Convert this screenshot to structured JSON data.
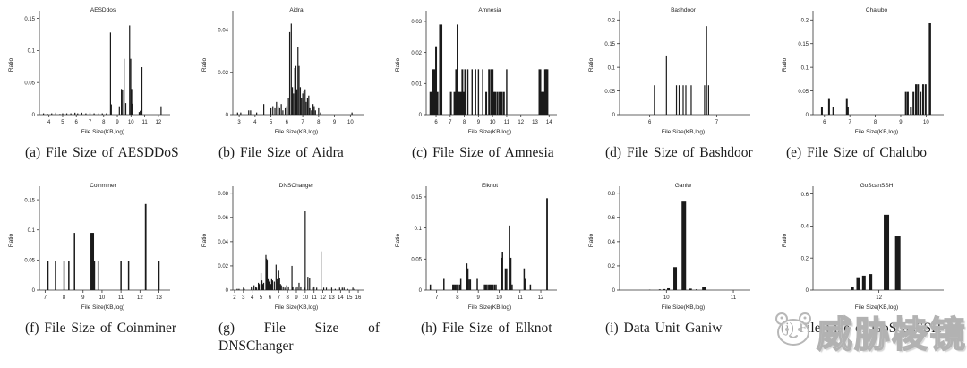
{
  "page": {
    "background": "#ffffff",
    "bar_color": "#1a1a1a",
    "axis_color": "#333333"
  },
  "watermark": {
    "logo_icon": "mascot-face-icon",
    "text": "威胁棱镜"
  },
  "chart_data": [
    {
      "type": "bar",
      "title": "AESDdos",
      "caption": "(a) File Size of AESDDoS",
      "xlabel": "File Size(KB,log)",
      "ylabel": "Ratio",
      "xmin": 3.3,
      "xmax": 12.6,
      "ymax": 0.155,
      "xticks": [
        4,
        5,
        6,
        7,
        8,
        9,
        10,
        11,
        12
      ],
      "yticks": [
        0,
        0.05,
        0.1,
        0.15
      ],
      "bars": [
        [
          3.6,
          0.002
        ],
        [
          3.9,
          0.001
        ],
        [
          4.2,
          0.002
        ],
        [
          4.5,
          0.003
        ],
        [
          4.8,
          0.001
        ],
        [
          5.0,
          0.002
        ],
        [
          5.3,
          0.002
        ],
        [
          5.6,
          0.002
        ],
        [
          5.9,
          0.003
        ],
        [
          6.1,
          0.002
        ],
        [
          6.4,
          0.003
        ],
        [
          6.7,
          0.002
        ],
        [
          7.0,
          0.003
        ],
        [
          7.3,
          0.002
        ],
        [
          7.6,
          0.002
        ],
        [
          7.9,
          0.002
        ],
        [
          8.2,
          0.002
        ],
        [
          8.5,
          0.128
        ],
        [
          8.56,
          0.016
        ],
        [
          9.15,
          0.013
        ],
        [
          9.3,
          0.04
        ],
        [
          9.38,
          0.038
        ],
        [
          9.5,
          0.087
        ],
        [
          9.62,
          0.018
        ],
        [
          9.9,
          0.139
        ],
        [
          9.98,
          0.087
        ],
        [
          10.05,
          0.04
        ],
        [
          10.12,
          0.017
        ],
        [
          10.6,
          0.004
        ],
        [
          10.68,
          0.006
        ],
        [
          10.8,
          0.074
        ],
        [
          12.2,
          0.013
        ]
      ]
    },
    {
      "type": "bar",
      "title": "Aidra",
      "caption": "(b) File Size of Aidra",
      "xlabel": "File Size(KB,log)",
      "ylabel": "Ratio",
      "xmin": 2.6,
      "xmax": 10.6,
      "ymax": 0.047,
      "xticks": [
        3,
        4,
        5,
        6,
        7,
        8,
        9,
        10
      ],
      "yticks": [
        0,
        0.02,
        0.04
      ],
      "bars": [
        [
          2.9,
          0.001
        ],
        [
          3.1,
          0.001
        ],
        [
          3.6,
          0.002
        ],
        [
          3.72,
          0.002
        ],
        [
          4.1,
          0.001
        ],
        [
          4.55,
          0.005
        ],
        [
          5.0,
          0.003
        ],
        [
          5.12,
          0.004
        ],
        [
          5.25,
          0.003
        ],
        [
          5.35,
          0.006
        ],
        [
          5.45,
          0.004
        ],
        [
          5.55,
          0.003
        ],
        [
          5.65,
          0.005
        ],
        [
          5.75,
          0.002
        ],
        [
          5.9,
          0.003
        ],
        [
          6.0,
          0.004
        ],
        [
          6.1,
          0.008
        ],
        [
          6.18,
          0.039
        ],
        [
          6.28,
          0.043
        ],
        [
          6.35,
          0.013
        ],
        [
          6.42,
          0.01
        ],
        [
          6.5,
          0.022
        ],
        [
          6.57,
          0.023
        ],
        [
          6.63,
          0.012
        ],
        [
          6.7,
          0.032
        ],
        [
          6.77,
          0.023
        ],
        [
          6.85,
          0.013
        ],
        [
          6.92,
          0.008
        ],
        [
          7.0,
          0.01
        ],
        [
          7.07,
          0.011
        ],
        [
          7.15,
          0.012
        ],
        [
          7.22,
          0.006
        ],
        [
          7.3,
          0.008
        ],
        [
          7.38,
          0.009
        ],
        [
          7.45,
          0.003
        ],
        [
          7.55,
          0.002
        ],
        [
          7.65,
          0.005
        ],
        [
          7.72,
          0.004
        ],
        [
          7.8,
          0.002
        ],
        [
          8.0,
          0.003
        ],
        [
          8.12,
          0.001
        ],
        [
          10.1,
          0.001
        ]
      ]
    },
    {
      "type": "bar",
      "title": "Amnesia",
      "caption": "(c) File Size of Amnesia",
      "xlabel": "File Size(KB,log)",
      "ylabel": "Ratio",
      "xmin": 5.3,
      "xmax": 14.3,
      "ymax": 0.032,
      "xticks": [
        6,
        7,
        8,
        9,
        10,
        11,
        12,
        13,
        14
      ],
      "yticks": [
        0,
        0.01,
        0.02,
        0.03
      ],
      "bars": [
        [
          5.6,
          0.0073,
          2
        ],
        [
          5.7,
          0.0073,
          2
        ],
        [
          5.8,
          0.0146,
          2
        ],
        [
          5.9,
          0.0146,
          2
        ],
        [
          6.0,
          0.022,
          2
        ],
        [
          6.1,
          0.0073,
          2
        ],
        [
          6.28,
          0.029,
          2
        ],
        [
          6.38,
          0.029,
          2
        ],
        [
          7.05,
          0.0073,
          2
        ],
        [
          7.3,
          0.0073,
          2
        ],
        [
          7.42,
          0.0146,
          2
        ],
        [
          7.5,
          0.029,
          1.4
        ],
        [
          7.58,
          0.0073,
          2
        ],
        [
          7.66,
          0.0073,
          2
        ],
        [
          7.76,
          0.0073,
          2
        ],
        [
          7.86,
          0.0146,
          2
        ],
        [
          7.96,
          0.0073,
          2
        ],
        [
          8.06,
          0.0146,
          2
        ],
        [
          8.25,
          0.0146,
          1.4
        ],
        [
          8.55,
          0.0146,
          1.4
        ],
        [
          8.8,
          0.0146,
          1.4
        ],
        [
          9.0,
          0.0146,
          1.4
        ],
        [
          9.3,
          0.0146,
          1.4
        ],
        [
          9.55,
          0.0073,
          2
        ],
        [
          9.75,
          0.0146,
          2
        ],
        [
          9.9,
          0.0146,
          2
        ],
        [
          10.0,
          0.0146,
          2
        ],
        [
          10.1,
          0.0073,
          2
        ],
        [
          10.2,
          0.0073,
          2
        ],
        [
          10.35,
          0.0073,
          2
        ],
        [
          10.5,
          0.0073,
          2
        ],
        [
          10.65,
          0.0073,
          2
        ],
        [
          10.8,
          0.0073,
          2
        ],
        [
          11.0,
          0.0146,
          1.4
        ],
        [
          13.35,
          0.0146,
          3
        ],
        [
          13.45,
          0.0073,
          3
        ],
        [
          13.55,
          0.0073,
          3
        ],
        [
          13.65,
          0.0073,
          3
        ],
        [
          13.75,
          0.0146,
          3
        ],
        [
          13.85,
          0.0146,
          3
        ]
      ]
    },
    {
      "type": "bar",
      "title": "Bashdoor",
      "caption": "(d) File Size of Bashdoor",
      "xlabel": "File Size(KB,log)",
      "ylabel": "Ratio",
      "xmin": 5.55,
      "xmax": 7.45,
      "ymax": 0.21,
      "xticks": [
        6,
        7
      ],
      "yticks": [
        0,
        0.05,
        0.1,
        0.15,
        0.2
      ],
      "bars": [
        [
          6.07,
          0.062
        ],
        [
          6.25,
          0.125
        ],
        [
          6.4,
          0.062
        ],
        [
          6.44,
          0.062
        ],
        [
          6.5,
          0.062
        ],
        [
          6.54,
          0.062
        ],
        [
          6.62,
          0.062
        ],
        [
          6.82,
          0.062
        ],
        [
          6.85,
          0.187
        ],
        [
          6.88,
          0.062
        ]
      ]
    },
    {
      "type": "bar",
      "title": "Chalubo",
      "caption": "(e) File Size of Chalubo",
      "xlabel": "File Size(KB,log)",
      "ylabel": "Ratio",
      "xmin": 5.55,
      "xmax": 10.55,
      "ymax": 0.21,
      "xticks": [
        6,
        7,
        8,
        9,
        10
      ],
      "yticks": [
        0,
        0.05,
        0.1,
        0.15,
        0.2
      ],
      "bars": [
        [
          5.9,
          0.016,
          2
        ],
        [
          6.18,
          0.033,
          2
        ],
        [
          6.35,
          0.016,
          2
        ],
        [
          6.88,
          0.033,
          2
        ],
        [
          6.93,
          0.016,
          1.4
        ],
        [
          9.2,
          0.048,
          2
        ],
        [
          9.28,
          0.048,
          2
        ],
        [
          9.4,
          0.016,
          2
        ],
        [
          9.5,
          0.048,
          2
        ],
        [
          9.6,
          0.064,
          2
        ],
        [
          9.68,
          0.064,
          2
        ],
        [
          9.78,
          0.048,
          2
        ],
        [
          9.88,
          0.064,
          2
        ],
        [
          9.98,
          0.064,
          2
        ],
        [
          10.15,
          0.193,
          2.5
        ]
      ]
    },
    {
      "type": "bar",
      "title": "Coinminer",
      "caption": "(f) File Size of Coinminer",
      "xlabel": "File Size(KB,log)",
      "ylabel": "Ratio",
      "xmin": 6.7,
      "xmax": 13.4,
      "ymax": 0.165,
      "xticks": [
        7,
        8,
        9,
        10,
        11,
        12,
        13
      ],
      "yticks": [
        0,
        0.05,
        0.1,
        0.15
      ],
      "bars": [
        [
          7.15,
          0.048,
          1.5
        ],
        [
          7.55,
          0.048,
          1.5
        ],
        [
          8.0,
          0.048,
          1.5
        ],
        [
          8.25,
          0.048,
          1.5
        ],
        [
          8.55,
          0.095,
          1.5
        ],
        [
          9.45,
          0.095,
          2.5
        ],
        [
          9.52,
          0.095,
          2.5
        ],
        [
          9.6,
          0.048,
          1.5
        ],
        [
          9.8,
          0.048,
          1.5
        ],
        [
          11.0,
          0.048,
          1.5
        ],
        [
          11.4,
          0.048,
          1.5
        ],
        [
          12.3,
          0.143,
          1.8
        ],
        [
          13.0,
          0.048,
          1.5
        ]
      ]
    },
    {
      "type": "bar",
      "title": "DNSChanger",
      "caption": "(g) File Size of DNSChanger",
      "xlabel": "File Size(KB,log)",
      "ylabel": "Ratio",
      "xmin": 1.8,
      "xmax": 16.2,
      "ymax": 0.082,
      "xticks": [
        2,
        3,
        4,
        5,
        6,
        7,
        8,
        9,
        10,
        11,
        12,
        13,
        14,
        15,
        16
      ],
      "yticks": [
        0,
        0.02,
        0.04,
        0.06,
        0.08
      ],
      "bars": [
        [
          2.3,
          0.001
        ],
        [
          2.5,
          0.001
        ],
        [
          3.0,
          0.002
        ],
        [
          3.1,
          0.001
        ],
        [
          3.9,
          0.003
        ],
        [
          4.0,
          0.002
        ],
        [
          4.2,
          0.004
        ],
        [
          4.4,
          0.003
        ],
        [
          4.5,
          0.002
        ],
        [
          4.7,
          0.006
        ],
        [
          4.8,
          0.005
        ],
        [
          5.0,
          0.014
        ],
        [
          5.1,
          0.008
        ],
        [
          5.2,
          0.005
        ],
        [
          5.3,
          0.006
        ],
        [
          5.55,
          0.029
        ],
        [
          5.62,
          0.026
        ],
        [
          5.7,
          0.025
        ],
        [
          5.8,
          0.009
        ],
        [
          5.9,
          0.007
        ],
        [
          6.0,
          0.008
        ],
        [
          6.1,
          0.005
        ],
        [
          6.2,
          0.009
        ],
        [
          6.3,
          0.008
        ],
        [
          6.5,
          0.007
        ],
        [
          6.7,
          0.021
        ],
        [
          6.8,
          0.009
        ],
        [
          6.9,
          0.007
        ],
        [
          7.0,
          0.016
        ],
        [
          7.1,
          0.01
        ],
        [
          7.2,
          0.005
        ],
        [
          7.3,
          0.004
        ],
        [
          7.5,
          0.003
        ],
        [
          7.7,
          0.002
        ],
        [
          7.9,
          0.004
        ],
        [
          8.1,
          0.003
        ],
        [
          8.5,
          0.02
        ],
        [
          8.6,
          0.003
        ],
        [
          8.9,
          0.002
        ],
        [
          9.1,
          0.003
        ],
        [
          9.3,
          0.006
        ],
        [
          9.5,
          0.003
        ],
        [
          9.9,
          0.002
        ],
        [
          10.0,
          0.065
        ],
        [
          10.3,
          0.011
        ],
        [
          10.5,
          0.01
        ],
        [
          10.8,
          0.002
        ],
        [
          11.0,
          0.003
        ],
        [
          11.3,
          0.002
        ],
        [
          11.8,
          0.032
        ],
        [
          12.1,
          0.002
        ],
        [
          12.4,
          0.002
        ],
        [
          12.7,
          0.001
        ],
        [
          13.0,
          0.002
        ],
        [
          13.4,
          0.001
        ],
        [
          13.9,
          0.002
        ],
        [
          14.2,
          0.002
        ],
        [
          14.4,
          0.002
        ],
        [
          14.8,
          0.001
        ],
        [
          15.4,
          0.002
        ],
        [
          15.6,
          0.001
        ]
      ]
    },
    {
      "type": "bar",
      "title": "Elknot",
      "caption": "(h) File Size of Elknot",
      "xlabel": "File Size(KB,log)",
      "ylabel": "Ratio",
      "xmin": 6.5,
      "xmax": 12.6,
      "ymax": 0.16,
      "xticks": [
        7,
        8,
        9,
        10,
        11,
        12
      ],
      "yticks": [
        0,
        0.05,
        0.1,
        0.15
      ],
      "bars": [
        [
          6.7,
          0.009,
          1.5
        ],
        [
          7.35,
          0.018,
          1.5
        ],
        [
          7.78,
          0.009,
          1.5
        ],
        [
          7.84,
          0.009,
          1.5
        ],
        [
          7.9,
          0.009,
          1.5
        ],
        [
          7.96,
          0.009,
          1.5
        ],
        [
          8.02,
          0.009,
          1.5
        ],
        [
          8.1,
          0.009,
          1.5
        ],
        [
          8.16,
          0.018,
          1.5
        ],
        [
          8.45,
          0.043,
          1.5
        ],
        [
          8.5,
          0.035,
          1.5
        ],
        [
          8.56,
          0.017,
          1.5
        ],
        [
          8.62,
          0.017,
          1.5
        ],
        [
          8.95,
          0.018,
          1.5
        ],
        [
          9.3,
          0.009,
          1.5
        ],
        [
          9.36,
          0.009,
          1.5
        ],
        [
          9.42,
          0.009,
          1.5
        ],
        [
          9.5,
          0.009,
          1.5
        ],
        [
          9.56,
          0.009,
          1.5
        ],
        [
          9.62,
          0.009,
          1.5
        ],
        [
          9.7,
          0.009,
          1.5
        ],
        [
          9.78,
          0.009,
          1.5
        ],
        [
          9.85,
          0.009,
          1.5
        ],
        [
          10.1,
          0.052,
          1.5
        ],
        [
          10.16,
          0.061,
          1.5
        ],
        [
          10.3,
          0.035,
          1.5
        ],
        [
          10.36,
          0.035,
          1.5
        ],
        [
          10.5,
          0.104,
          1.5
        ],
        [
          10.56,
          0.052,
          1.5
        ],
        [
          10.62,
          0.009,
          1.5
        ],
        [
          11.2,
          0.035,
          1.5
        ],
        [
          11.26,
          0.018,
          1.5
        ],
        [
          11.5,
          0.009,
          1.5
        ],
        [
          12.3,
          0.148,
          1.8
        ]
      ]
    },
    {
      "type": "bar",
      "title": "Ganiw",
      "caption": "(i) Data Unit Ganiw",
      "xlabel": "File Size(KB,log)",
      "ylabel": "Ratio",
      "xmin": 9.3,
      "xmax": 11.2,
      "ymax": 0.82,
      "xticks": [
        10,
        11
      ],
      "yticks": [
        0,
        0.2,
        0.4,
        0.6,
        0.8
      ],
      "bars": [
        [
          9.75,
          0.003,
          1.5
        ],
        [
          9.9,
          0.006,
          2
        ],
        [
          9.97,
          0.008,
          2
        ],
        [
          10.03,
          0.015,
          3
        ],
        [
          10.13,
          0.19,
          4
        ],
        [
          10.26,
          0.73,
          5
        ],
        [
          10.36,
          0.012,
          3
        ],
        [
          10.45,
          0.006,
          2
        ],
        [
          10.56,
          0.025,
          4
        ]
      ]
    },
    {
      "type": "bar",
      "title": "GoScanSSH",
      "caption": "(j) File Size of GoScanSSH",
      "xlabel": "File Size(KB,log)",
      "ylabel": "Ratio",
      "xmin": 11.3,
      "xmax": 12.65,
      "ymax": 0.62,
      "xticks": [
        12
      ],
      "yticks": [
        0,
        0.2,
        0.4,
        0.6
      ],
      "bars": [
        [
          11.72,
          0.02,
          3
        ],
        [
          11.78,
          0.08,
          4
        ],
        [
          11.84,
          0.09,
          4
        ],
        [
          11.91,
          0.1,
          4
        ],
        [
          12.08,
          0.47,
          6
        ],
        [
          12.2,
          0.335,
          6
        ]
      ]
    }
  ]
}
